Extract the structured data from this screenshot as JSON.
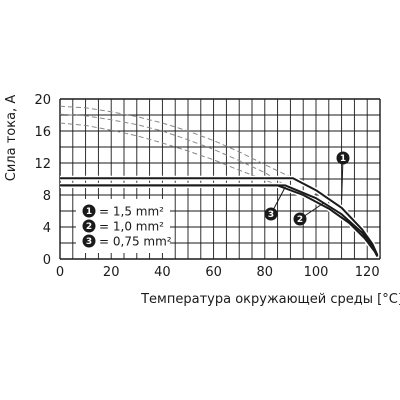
{
  "chart_data": {
    "type": "line",
    "xlabel": "Температура окружающей среды [°C]",
    "ylabel": "Сила тока, А",
    "xlim": [
      0,
      125
    ],
    "ylim": [
      0,
      20
    ],
    "xticks": [
      "0",
      "20",
      "40",
      "60",
      "80",
      "100",
      "120"
    ],
    "yticks": [
      "0",
      "4",
      "8",
      "12",
      "16",
      "20"
    ],
    "grid": true,
    "legend_position": "lower-left",
    "series": [
      {
        "name": "1,5 mm²",
        "marker": "1",
        "points": [
          [
            0,
            10.1
          ],
          [
            91,
            10.1
          ],
          [
            100,
            8.6
          ],
          [
            110,
            6.4
          ],
          [
            118,
            3.7
          ],
          [
            122,
            1.9
          ],
          [
            124,
            0.5
          ]
        ],
        "dashed_points": [
          [
            0,
            19.1
          ],
          [
            10,
            18.9
          ],
          [
            20,
            18.4
          ],
          [
            30,
            17.8
          ],
          [
            40,
            17.0
          ],
          [
            50,
            16.0
          ],
          [
            60,
            14.8
          ],
          [
            70,
            13.4
          ],
          [
            80,
            11.8
          ],
          [
            91,
            10.1
          ]
        ]
      },
      {
        "name": "1,0 mm²",
        "marker": "2",
        "points": [
          [
            0,
            9.2
          ],
          [
            88,
            9.2
          ],
          [
            100,
            7.6
          ],
          [
            110,
            5.6
          ],
          [
            118,
            3.3
          ],
          [
            122,
            1.7
          ],
          [
            124,
            0.4
          ]
        ],
        "dashed_points": [
          [
            0,
            18.1
          ],
          [
            10,
            17.9
          ],
          [
            20,
            17.4
          ],
          [
            30,
            16.8
          ],
          [
            40,
            16.0
          ],
          [
            50,
            14.9
          ],
          [
            60,
            13.7
          ],
          [
            70,
            12.3
          ],
          [
            80,
            10.8
          ],
          [
            88,
            9.2
          ]
        ]
      },
      {
        "name": "0,75 mm²",
        "marker": "3",
        "points": [
          [
            0,
            9.2
          ],
          [
            85,
            9.2
          ],
          [
            95,
            8.0
          ],
          [
            105,
            6.3
          ],
          [
            113,
            4.5
          ],
          [
            119,
            2.6
          ],
          [
            123,
            0.9
          ],
          [
            124,
            0.3
          ]
        ],
        "dashed_points": [
          [
            0,
            17.0
          ],
          [
            10,
            16.7
          ],
          [
            20,
            16.1
          ],
          [
            30,
            15.4
          ],
          [
            40,
            14.5
          ],
          [
            50,
            13.5
          ],
          [
            60,
            12.4
          ],
          [
            70,
            11.1
          ],
          [
            80,
            9.9
          ],
          [
            85,
            9.2
          ]
        ]
      }
    ],
    "legend": [
      {
        "marker": "1",
        "text": "= 1,5 mm²"
      },
      {
        "marker": "2",
        "text": "= 1,0 mm²"
      },
      {
        "marker": "3",
        "text": "= 0,75 mm²"
      }
    ],
    "callouts": [
      "1",
      "2",
      "3"
    ],
    "colors": {
      "line": "#1a1a1a",
      "grid": "#1a1a1a",
      "dashed": "#888888",
      "marker_fill": "#1a1a1a"
    }
  }
}
